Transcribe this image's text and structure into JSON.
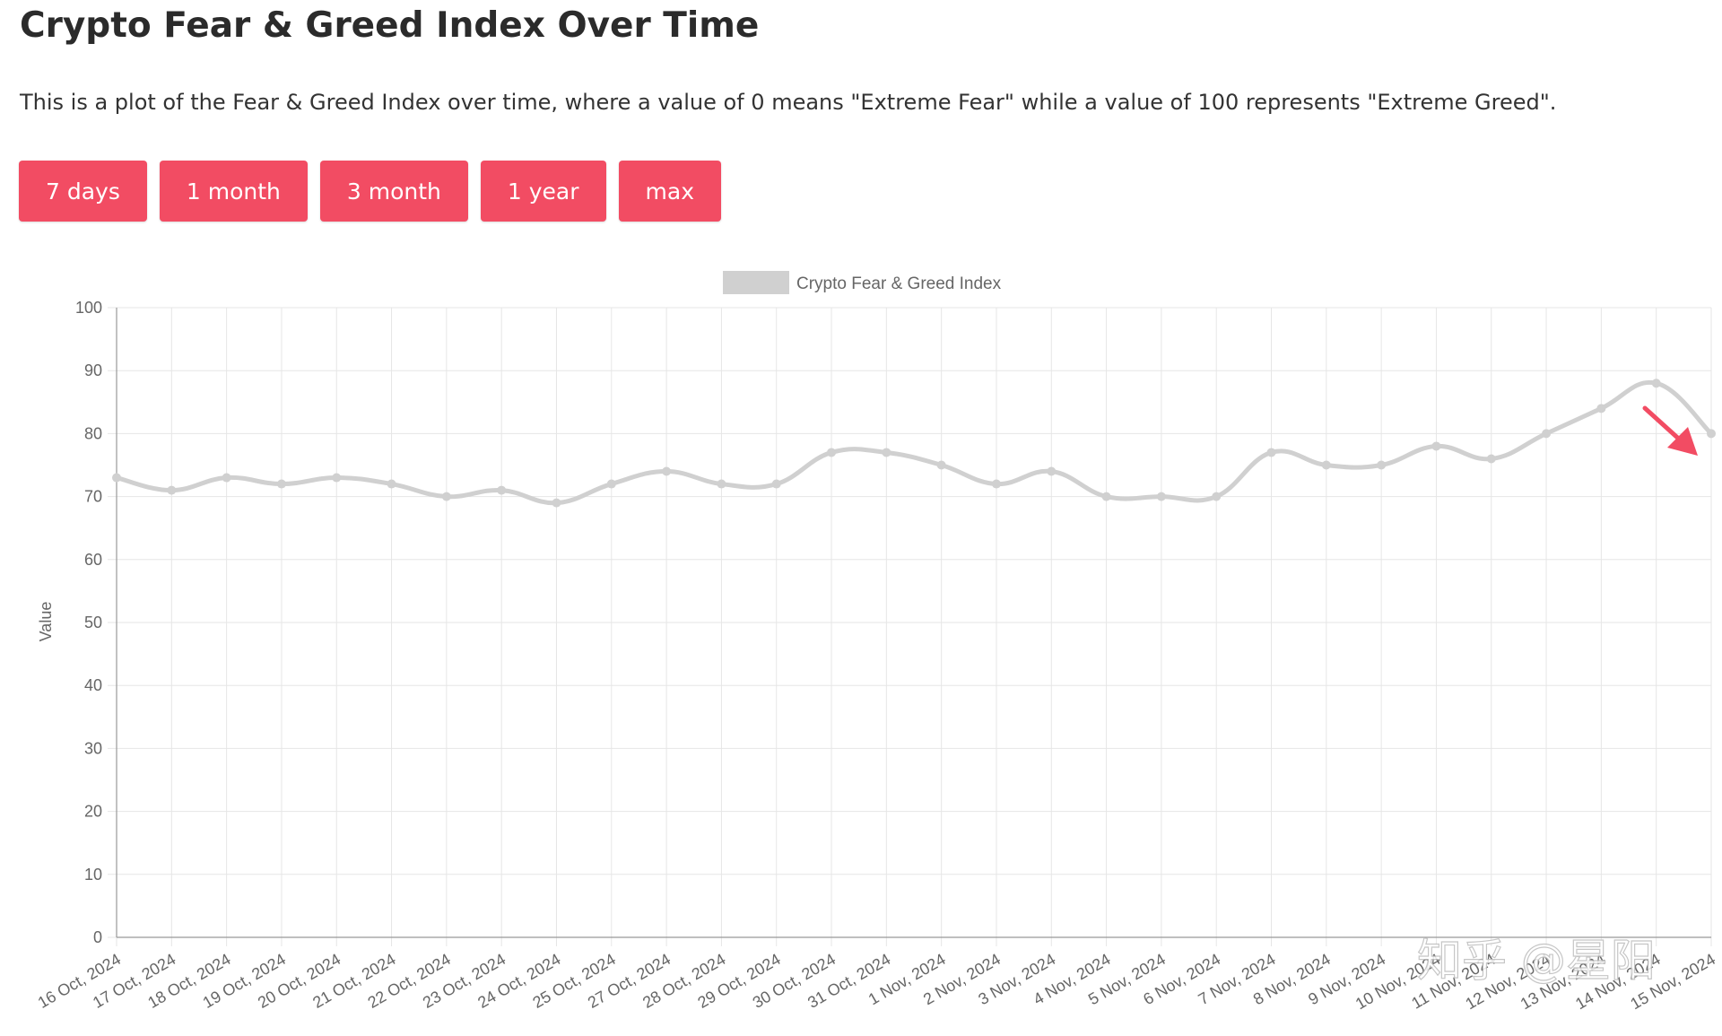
{
  "page": {
    "title": "Crypto Fear & Greed Index Over Time",
    "description": "This is a plot of the Fear & Greed Index over time, where a value of 0 means \"Extreme Fear\" while a value of 100 represents \"Extreme Greed\"."
  },
  "range_buttons": [
    "7 days",
    "1 month",
    "3 month",
    "1 year",
    "max"
  ],
  "colors": {
    "button_bg": "#f24c63",
    "button_text": "#ffffff",
    "series": "#d0d0d0",
    "grid": "#e6e6e6",
    "arrow": "#f24c63"
  },
  "chart_data": {
    "type": "line",
    "title": "",
    "xlabel": "",
    "ylabel": "Value",
    "ylim": [
      0,
      100
    ],
    "yticks": [
      0,
      10,
      20,
      30,
      40,
      50,
      60,
      70,
      80,
      90,
      100
    ],
    "grid": true,
    "legend_position": "top",
    "categories": [
      "16 Oct, 2024",
      "17 Oct, 2024",
      "18 Oct, 2024",
      "19 Oct, 2024",
      "20 Oct, 2024",
      "21 Oct, 2024",
      "22 Oct, 2024",
      "23 Oct, 2024",
      "24 Oct, 2024",
      "25 Oct, 2024",
      "27 Oct, 2024",
      "28 Oct, 2024",
      "29 Oct, 2024",
      "30 Oct, 2024",
      "31 Oct, 2024",
      "1 Nov, 2024",
      "2 Nov, 2024",
      "3 Nov, 2024",
      "4 Nov, 2024",
      "5 Nov, 2024",
      "6 Nov, 2024",
      "7 Nov, 2024",
      "8 Nov, 2024",
      "9 Nov, 2024",
      "10 Nov, 2024",
      "11 Nov, 2024",
      "12 Nov, 2024",
      "13 Nov, 2024",
      "14 Nov, 2024",
      "15 Nov, 2024"
    ],
    "series": [
      {
        "name": "Crypto Fear & Greed Index",
        "values": [
          73,
          71,
          73,
          72,
          73,
          72,
          70,
          71,
          69,
          72,
          74,
          72,
          72,
          77,
          77,
          75,
          72,
          74,
          70,
          70,
          70,
          77,
          75,
          75,
          78,
          76,
          80,
          84,
          88,
          80
        ]
      }
    ],
    "annotation": {
      "type": "arrow",
      "direction": "down-right",
      "near_category": "15 Nov, 2024"
    }
  },
  "watermark": "知乎 @星阳"
}
